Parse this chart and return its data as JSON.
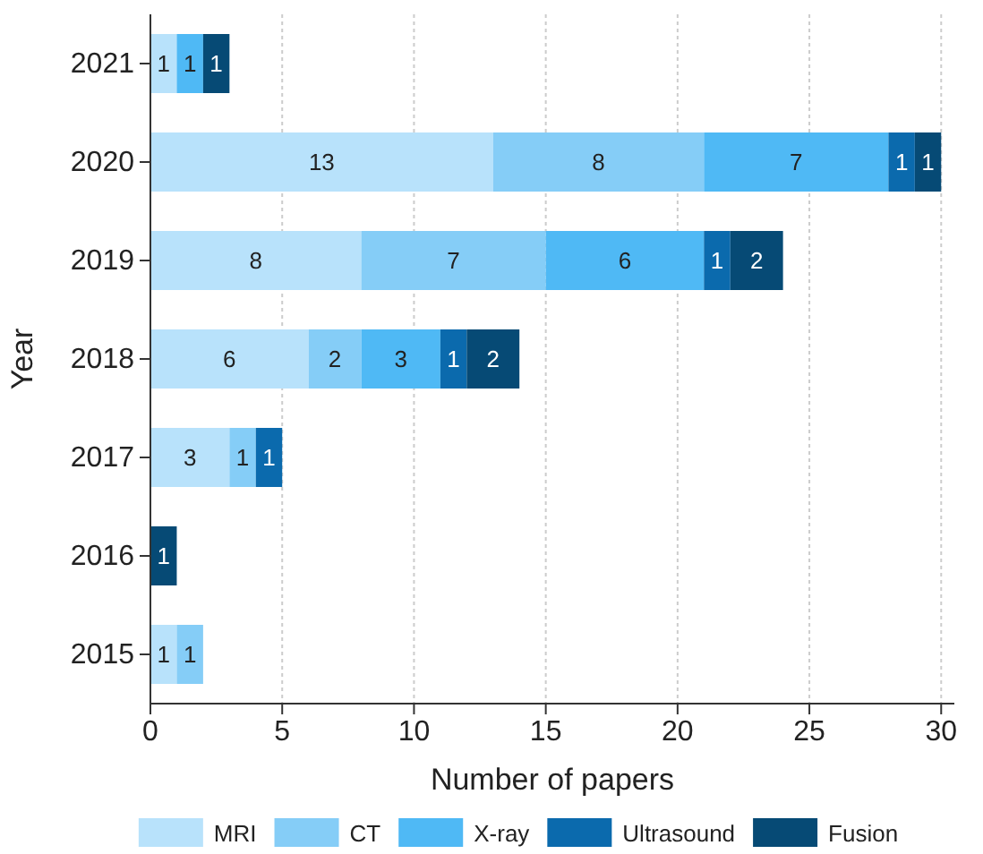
{
  "chart_data": {
    "type": "bar",
    "orientation": "horizontal",
    "stacked": true,
    "xlabel": "Number of papers",
    "ylabel": "Year",
    "categories": [
      "2021",
      "2020",
      "2019",
      "2018",
      "2017",
      "2016",
      "2015"
    ],
    "series": [
      {
        "name": "MRI",
        "color": "#b8e2fb",
        "values": [
          1,
          13,
          8,
          6,
          3,
          null,
          1
        ]
      },
      {
        "name": "CT",
        "color": "#85cdf7",
        "values": [
          null,
          8,
          7,
          2,
          1,
          null,
          1
        ]
      },
      {
        "name": "X-ray",
        "color": "#4fb9f5",
        "values": [
          1,
          7,
          6,
          3,
          null,
          null,
          null
        ]
      },
      {
        "name": "Ultrasound",
        "color": "#0b6aad",
        "values": [
          null,
          1,
          1,
          1,
          1,
          null,
          null
        ]
      },
      {
        "name": "Fusion",
        "color": "#064a75",
        "values": [
          1,
          1,
          2,
          2,
          null,
          1,
          null
        ]
      }
    ],
    "xlim": [
      0,
      30.5
    ],
    "xticks": [
      0,
      5,
      10,
      15,
      20,
      25,
      30
    ],
    "grid": "x",
    "legend": "bottom",
    "data_labels": true
  }
}
